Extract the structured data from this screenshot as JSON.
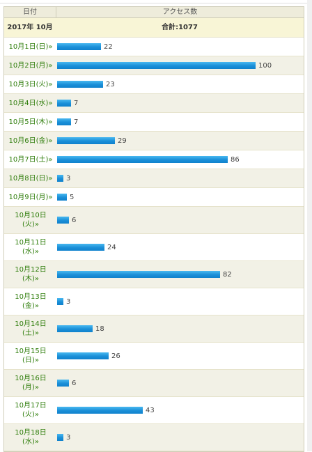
{
  "header": {
    "date_col": "日付",
    "access_col": "アクセス数"
  },
  "summary": {
    "month": "2017年 10月",
    "total": "合計:1077"
  },
  "rows": [
    {
      "date": "10月1日(日)»",
      "value": 22
    },
    {
      "date": "10月2日(月)»",
      "value": 100
    },
    {
      "date": "10月3日(火)»",
      "value": 23
    },
    {
      "date": "10月4日(水)»",
      "value": 7
    },
    {
      "date": "10月5日(木)»",
      "value": 7
    },
    {
      "date": "10月6日(金)»",
      "value": 29
    },
    {
      "date": "10月7日(土)»",
      "value": 86
    },
    {
      "date": "10月8日(日)»",
      "value": 3
    },
    {
      "date": "10月9日(月)»",
      "value": 5
    },
    {
      "date": "10月10日\n(火)»",
      "value": 6
    },
    {
      "date": "10月11日\n(水)»",
      "value": 24
    },
    {
      "date": "10月12日\n(木)»",
      "value": 82
    },
    {
      "date": "10月13日\n(金)»",
      "value": 3
    },
    {
      "date": "10月14日\n(土)»",
      "value": 18
    },
    {
      "date": "10月15日\n(日)»",
      "value": 26
    },
    {
      "date": "10月16日\n(月)»",
      "value": 6
    },
    {
      "date": "10月17日\n(火)»",
      "value": 43
    },
    {
      "date": "10月18日\n(水)»",
      "value": 3
    }
  ],
  "bar_max": 100,
  "colors": {
    "bar": "#1a8fd8",
    "date_link": "#2e7d0a",
    "summary_bg": "#f8f5d6"
  }
}
